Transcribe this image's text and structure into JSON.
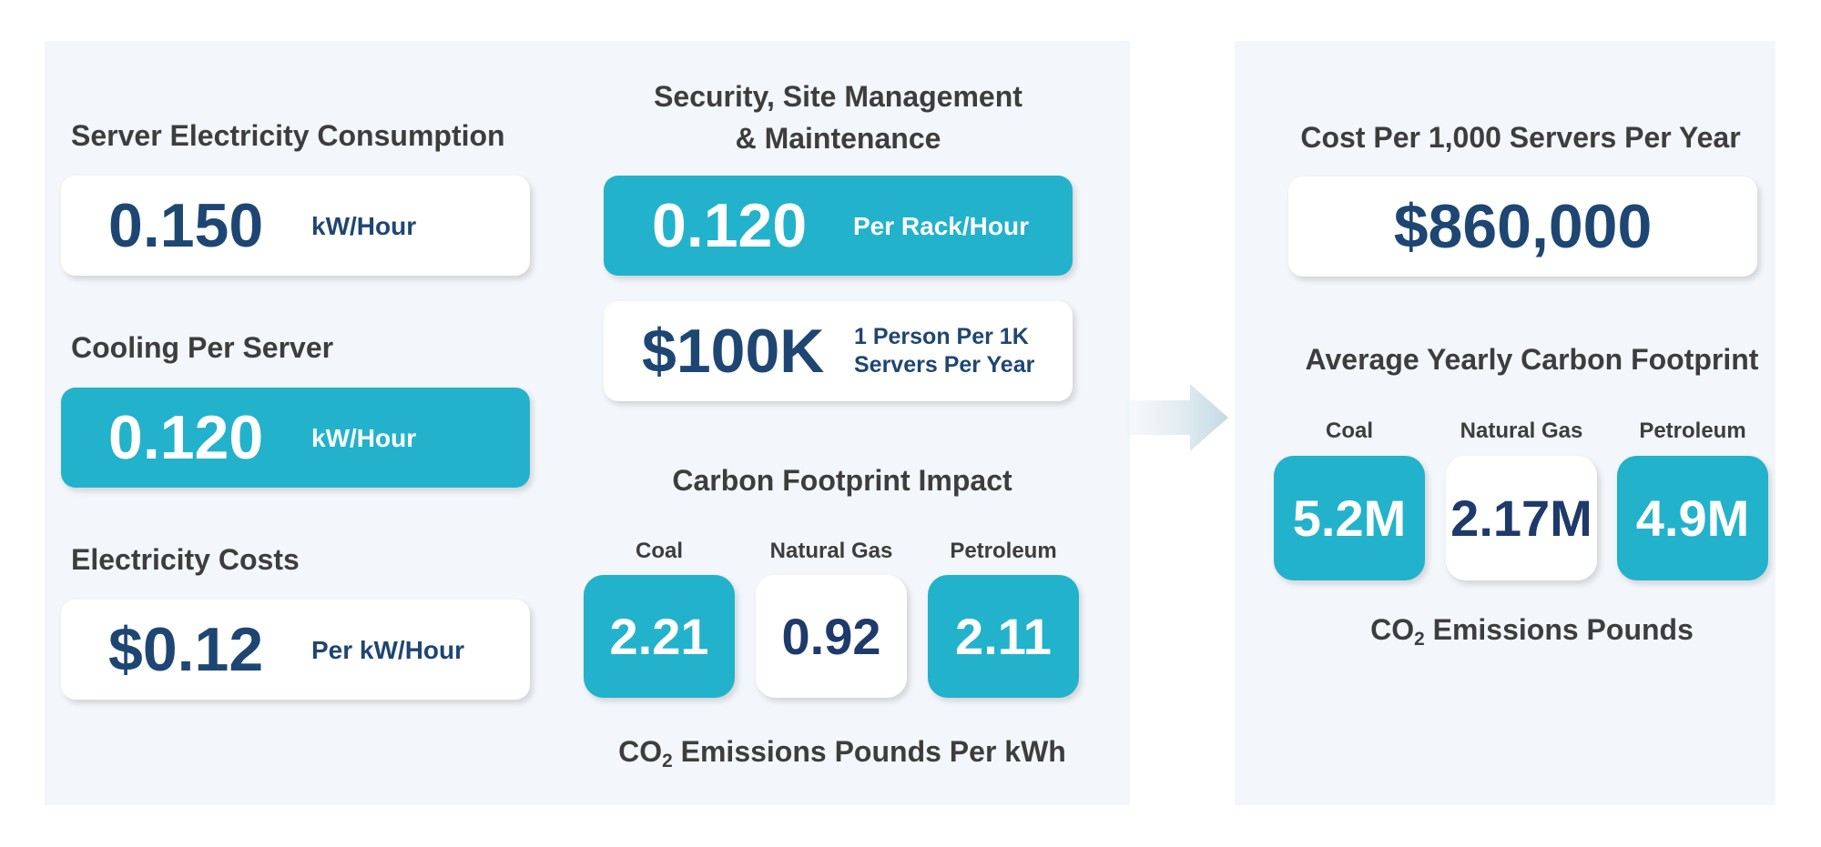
{
  "left": {
    "server": {
      "title": "Server Electricity Consumption",
      "value": "0.150",
      "unit": "kW/Hour"
    },
    "cooling": {
      "title": "Cooling Per Server",
      "value": "0.120",
      "unit": "kW/Hour"
    },
    "costs": {
      "title": "Electricity Costs",
      "value": "$0.12",
      "unit": "Per kW/Hour"
    },
    "security": {
      "title_line1": "Security, Site Management",
      "title_line2": "& Maintenance",
      "rack_value": "0.120",
      "rack_unit": "Per Rack/Hour",
      "staff_value": "$100K",
      "staff_unit_line1": "1 Person Per 1K",
      "staff_unit_line2": "Servers Per Year"
    },
    "carbon": {
      "title": "Carbon Footprint Impact",
      "sources": [
        {
          "label": "Coal",
          "value": "2.21",
          "style": "teal"
        },
        {
          "label": "Natural Gas",
          "value": "0.92",
          "style": "white"
        },
        {
          "label": "Petroleum",
          "value": "2.11",
          "style": "teal"
        }
      ],
      "footer_prefix": "CO",
      "footer_sub": "2",
      "footer_suffix": " Emissions Pounds Per kWh"
    }
  },
  "right": {
    "cost": {
      "title": "Cost Per 1,000 Servers Per Year",
      "value": "$860,000"
    },
    "carbon": {
      "title": "Average Yearly Carbon Footprint",
      "sources": [
        {
          "label": "Coal",
          "value": "5.2M",
          "style": "teal"
        },
        {
          "label": "Natural Gas",
          "value": "2.17M",
          "style": "white"
        },
        {
          "label": "Petroleum",
          "value": "4.9M",
          "style": "teal"
        }
      ],
      "footer_prefix": "CO",
      "footer_sub": "2",
      "footer_suffix": " Emissions Pounds"
    }
  },
  "colors": {
    "teal": "#23b2cb",
    "navy": "#1e4673",
    "panel": "#f3f6fa",
    "arrow": "#c9dce6"
  },
  "icons": {
    "arrow": "arrow-right-icon"
  }
}
